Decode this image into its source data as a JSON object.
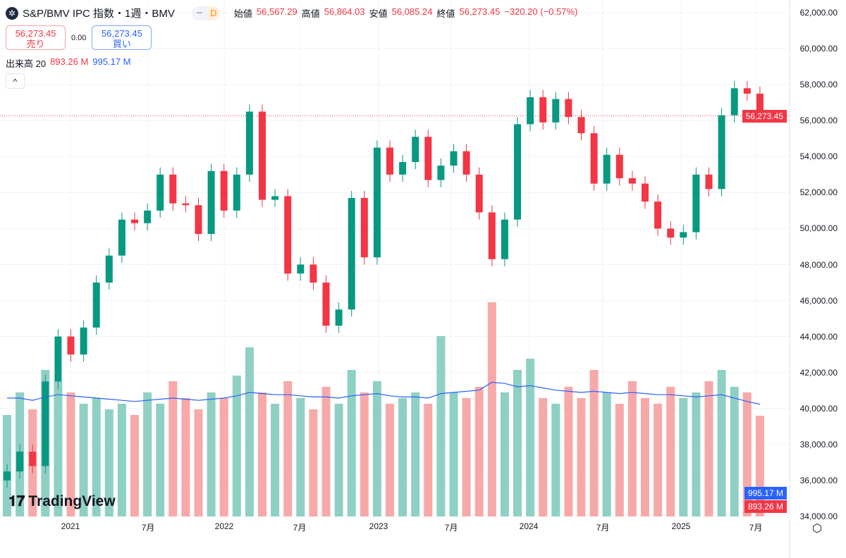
{
  "header": {
    "symbol_icon": "crosshair-logo-icon",
    "title": "S&P/BMV IPC 指数・1週・BMV",
    "pill_minus": "−",
    "pill_d": "D",
    "ohlc": [
      {
        "label": "始値",
        "value": "56,567.29"
      },
      {
        "label": "高値",
        "value": "56,864.03"
      },
      {
        "label": "安値",
        "value": "56,085.24"
      },
      {
        "label": "終値",
        "value": "56,273.45"
      }
    ],
    "change": "−320.20 (−0.57%)"
  },
  "trade": {
    "sell_price": "56,273.45",
    "sell_label": "売り",
    "spread": "0.00",
    "buy_price": "56,273.45",
    "buy_label": "買い"
  },
  "volume_legend": {
    "label": "出来高 20",
    "vol": "893.26 M",
    "ma": "995.17 M"
  },
  "collapse_label": "^",
  "price_tag": "56,273.45",
  "volume_tags": {
    "ma": "995.17 M",
    "vol": "893.26 M"
  },
  "colors": {
    "up": "#089981",
    "down": "#f23645",
    "vol_up": "#8fd0c4",
    "vol_down": "#f7a9a9",
    "ma": "#2962ff"
  },
  "branding": "TradingView",
  "chart_data": {
    "type": "candlestick",
    "y_ticks": [
      "62,000.00",
      "60,000.00",
      "58,000.00",
      "56,000.00",
      "54,000.00",
      "52,000.00",
      "50,000.00",
      "48,000.00",
      "46,000.00",
      "44,000.00",
      "42,000.00",
      "40,000.00",
      "38,000.00",
      "36,000.00",
      "34,000.00"
    ],
    "ylim": [
      34000,
      62000
    ],
    "x_ticks": [
      "2021",
      "7月",
      "2022",
      "7月",
      "2023",
      "7月",
      "2024",
      "7月",
      "2025",
      "7月"
    ],
    "dates": [
      "2020-08",
      "2020-09",
      "2020-10",
      "2020-11",
      "2020-12",
      "2021-01",
      "2021-02",
      "2021-03",
      "2021-04",
      "2021-05",
      "2021-06",
      "2021-07",
      "2021-08",
      "2021-09",
      "2021-10",
      "2021-11",
      "2021-12",
      "2022-01",
      "2022-02",
      "2022-03",
      "2022-04",
      "2022-05",
      "2022-06",
      "2022-07",
      "2022-08",
      "2022-09",
      "2022-10",
      "2022-11",
      "2022-12",
      "2023-01",
      "2023-02",
      "2023-03",
      "2023-04",
      "2023-05",
      "2023-06",
      "2023-07",
      "2023-08",
      "2023-09",
      "2023-10",
      "2023-11",
      "2023-12",
      "2024-01",
      "2024-02",
      "2024-03",
      "2024-04",
      "2024-05",
      "2024-06",
      "2024-07",
      "2024-08",
      "2024-09",
      "2024-10",
      "2024-11",
      "2024-12",
      "2025-01",
      "2025-02",
      "2025-03",
      "2025-04",
      "2025-05",
      "2025-06",
      "2025-07"
    ],
    "close": [
      36500,
      37600,
      36800,
      41500,
      44000,
      43000,
      44500,
      47000,
      48500,
      50500,
      50300,
      51000,
      53000,
      51400,
      51300,
      49700,
      53200,
      51000,
      53000,
      56500,
      51600,
      51800,
      47500,
      48000,
      47000,
      44600,
      45500,
      51700,
      48400,
      54500,
      53000,
      53700,
      55100,
      52700,
      53500,
      54300,
      53000,
      50900,
      48300,
      50500,
      55800,
      57300,
      55900,
      57200,
      56200,
      55300,
      52500,
      54100,
      52800,
      52500,
      51500,
      50000,
      49500,
      49800,
      53000,
      52200,
      56300,
      57800,
      57500,
      56273.45
    ],
    "volume_m": [
      900,
      1100,
      950,
      1300,
      1200,
      1100,
      1000,
      1050,
      950,
      1000,
      900,
      1100,
      1000,
      1200,
      1050,
      950,
      1100,
      1050,
      1250,
      1500,
      1100,
      1000,
      1200,
      1050,
      950,
      1150,
      1000,
      1300,
      1100,
      1200,
      1000,
      1050,
      1100,
      1000,
      1600,
      1100,
      1050,
      1150,
      1900,
      1100,
      1300,
      1400,
      1050,
      1000,
      1150,
      1050,
      1300,
      1100,
      1000,
      1200,
      1050,
      1000,
      1150,
      1050,
      1100,
      1200,
      1300,
      1150,
      1100,
      893.26
    ],
    "volume_ma_m": [
      1050,
      1050,
      1030,
      1060,
      1080,
      1070,
      1060,
      1050,
      1040,
      1030,
      1020,
      1030,
      1040,
      1050,
      1040,
      1030,
      1040,
      1050,
      1070,
      1100,
      1090,
      1080,
      1080,
      1070,
      1060,
      1060,
      1050,
      1070,
      1080,
      1090,
      1070,
      1060,
      1060,
      1050,
      1090,
      1100,
      1110,
      1120,
      1190,
      1180,
      1150,
      1160,
      1140,
      1120,
      1110,
      1100,
      1110,
      1100,
      1090,
      1100,
      1090,
      1080,
      1080,
      1070,
      1060,
      1070,
      1080,
      1050,
      1020,
      995.17
    ]
  }
}
